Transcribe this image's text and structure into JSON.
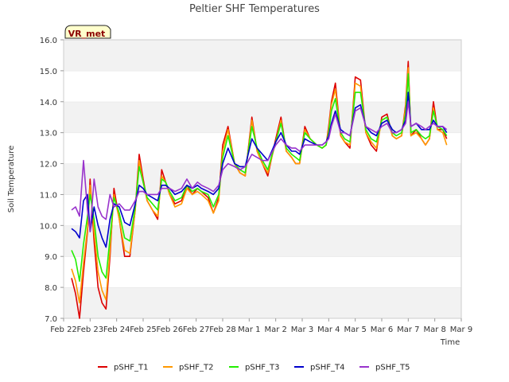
{
  "chart_data": {
    "type": "line",
    "title": "Peltier SHF Temperatures",
    "xlabel": "Time",
    "ylabel": "Soil Temperature",
    "badge": "VR_met",
    "x_ticks": [
      "Feb 22",
      "Feb 23",
      "Feb 24",
      "Feb 25",
      "Feb 26",
      "Feb 27",
      "Feb 28",
      "Mar 1",
      "Mar 2",
      "Mar 3",
      "Mar 4",
      "Mar 5",
      "Mar 6",
      "Mar 7",
      "Mar 8",
      "Mar 9"
    ],
    "xlim": [
      0,
      15
    ],
    "ylim": [
      7.0,
      16.0
    ],
    "y_ticks": [
      "7.0",
      "8.0",
      "9.0",
      "10.0",
      "11.0",
      "12.0",
      "13.0",
      "14.0",
      "15.0",
      "16.0"
    ],
    "grid": "horizontal bands",
    "legend_position": "bottom",
    "series": [
      {
        "name": "pSHF_T1",
        "color": "#dd0000",
        "x": [
          0.3,
          0.45,
          0.6,
          0.75,
          0.9,
          1.0,
          1.15,
          1.3,
          1.45,
          1.6,
          1.75,
          1.9,
          2.1,
          2.3,
          2.5,
          2.7,
          2.85,
          3.0,
          3.15,
          3.35,
          3.55,
          3.7,
          3.85,
          4.0,
          4.2,
          4.45,
          4.65,
          4.85,
          5.05,
          5.2,
          5.45,
          5.65,
          5.85,
          6.0,
          6.2,
          6.45,
          6.65,
          6.85,
          7.1,
          7.3,
          7.5,
          7.7,
          8.0,
          8.2,
          8.4,
          8.6,
          8.75,
          8.9,
          9.1,
          9.3,
          9.55,
          9.75,
          9.9,
          10.0,
          10.1,
          10.25,
          10.45,
          10.6,
          10.8,
          11.0,
          11.2,
          11.4,
          11.6,
          11.8,
          12.0,
          12.2,
          12.4,
          12.55,
          12.75,
          12.9,
          13.0,
          13.1,
          13.3,
          13.5,
          13.65,
          13.8,
          13.95,
          14.1,
          14.3,
          14.45
        ],
        "values": [
          8.3,
          7.8,
          7.0,
          8.5,
          9.8,
          11.5,
          9.5,
          8.0,
          7.5,
          7.3,
          9.0,
          11.2,
          10.2,
          9.0,
          9.0,
          10.5,
          12.3,
          11.5,
          10.8,
          10.5,
          10.2,
          11.8,
          11.4,
          11.0,
          10.7,
          10.8,
          11.3,
          11.0,
          11.2,
          11.1,
          10.9,
          10.4,
          10.9,
          12.6,
          13.2,
          12.0,
          11.7,
          11.6,
          13.5,
          12.4,
          12.0,
          11.6,
          12.8,
          13.5,
          12.4,
          12.2,
          12.0,
          12.0,
          13.2,
          12.8,
          12.6,
          12.5,
          12.6,
          13.2,
          14.0,
          14.6,
          12.9,
          12.7,
          12.5,
          14.8,
          14.7,
          13.0,
          12.6,
          12.4,
          13.5,
          13.6,
          12.9,
          12.8,
          12.9,
          13.9,
          15.3,
          12.9,
          13.1,
          12.8,
          12.6,
          12.8,
          14.0,
          13.1,
          13.1,
          12.8
        ]
      },
      {
        "name": "pSHF_T2",
        "color": "#ff9900",
        "x": [
          0.3,
          0.45,
          0.6,
          0.75,
          0.9,
          1.0,
          1.15,
          1.3,
          1.45,
          1.6,
          1.75,
          1.9,
          2.1,
          2.3,
          2.5,
          2.7,
          2.85,
          3.0,
          3.15,
          3.35,
          3.55,
          3.7,
          3.85,
          4.0,
          4.2,
          4.45,
          4.65,
          4.85,
          5.05,
          5.2,
          5.45,
          5.65,
          5.85,
          6.0,
          6.2,
          6.45,
          6.65,
          6.85,
          7.1,
          7.3,
          7.5,
          7.7,
          8.0,
          8.2,
          8.4,
          8.6,
          8.75,
          8.9,
          9.1,
          9.3,
          9.55,
          9.75,
          9.9,
          10.0,
          10.1,
          10.25,
          10.45,
          10.6,
          10.8,
          11.0,
          11.2,
          11.4,
          11.6,
          11.8,
          12.0,
          12.2,
          12.4,
          12.55,
          12.75,
          12.9,
          13.0,
          13.1,
          13.3,
          13.5,
          13.65,
          13.8,
          13.95,
          14.1,
          14.3,
          14.45
        ],
        "values": [
          8.6,
          8.2,
          7.5,
          8.8,
          9.9,
          11.3,
          9.8,
          8.5,
          7.9,
          7.6,
          9.2,
          11.0,
          10.2,
          9.2,
          9.1,
          10.5,
          12.1,
          11.4,
          10.8,
          10.5,
          10.3,
          11.6,
          11.4,
          11.0,
          10.6,
          10.7,
          11.2,
          11.0,
          11.1,
          11.0,
          10.8,
          10.4,
          10.8,
          12.4,
          13.1,
          12.0,
          11.7,
          11.6,
          13.4,
          12.4,
          12.0,
          11.7,
          12.7,
          13.4,
          12.4,
          12.2,
          12.0,
          12.0,
          13.1,
          12.8,
          12.6,
          12.5,
          12.6,
          13.1,
          13.9,
          14.4,
          12.9,
          12.7,
          12.6,
          14.6,
          14.5,
          13.0,
          12.7,
          12.5,
          13.4,
          13.5,
          12.9,
          12.8,
          12.9,
          13.8,
          15.1,
          12.9,
          13.0,
          12.8,
          12.6,
          12.8,
          13.8,
          13.1,
          13.0,
          12.6
        ]
      },
      {
        "name": "pSHF_T3",
        "color": "#22ee00",
        "x": [
          0.3,
          0.45,
          0.6,
          0.75,
          0.9,
          1.0,
          1.15,
          1.3,
          1.45,
          1.6,
          1.75,
          1.9,
          2.1,
          2.3,
          2.5,
          2.7,
          2.85,
          3.0,
          3.15,
          3.35,
          3.55,
          3.7,
          3.85,
          4.0,
          4.2,
          4.45,
          4.65,
          4.85,
          5.05,
          5.2,
          5.45,
          5.65,
          5.85,
          6.0,
          6.2,
          6.45,
          6.65,
          6.85,
          7.1,
          7.3,
          7.5,
          7.7,
          8.0,
          8.2,
          8.4,
          8.6,
          8.75,
          8.9,
          9.1,
          9.3,
          9.55,
          9.75,
          9.9,
          10.0,
          10.1,
          10.25,
          10.45,
          10.6,
          10.8,
          11.0,
          11.2,
          11.4,
          11.6,
          11.8,
          12.0,
          12.2,
          12.4,
          12.55,
          12.75,
          12.9,
          13.0,
          13.1,
          13.3,
          13.5,
          13.65,
          13.8,
          13.95,
          14.1,
          14.3,
          14.45
        ],
        "values": [
          9.2,
          8.9,
          8.2,
          9.4,
          10.3,
          11.0,
          10.2,
          9.0,
          8.5,
          8.3,
          9.6,
          10.9,
          10.4,
          9.6,
          9.5,
          10.6,
          11.9,
          11.4,
          10.9,
          10.7,
          10.5,
          11.5,
          11.4,
          11.1,
          10.8,
          10.9,
          11.3,
          11.1,
          11.2,
          11.1,
          11.0,
          10.6,
          11.0,
          12.2,
          12.9,
          12.0,
          11.8,
          11.7,
          13.2,
          12.5,
          12.1,
          11.8,
          12.7,
          13.3,
          12.5,
          12.3,
          12.2,
          12.1,
          13.0,
          12.8,
          12.6,
          12.5,
          12.6,
          13.0,
          13.7,
          14.1,
          13.0,
          12.8,
          12.7,
          14.3,
          14.3,
          13.1,
          12.8,
          12.7,
          13.4,
          13.5,
          13.0,
          12.9,
          13.0,
          13.6,
          14.9,
          13.0,
          13.1,
          12.9,
          12.8,
          12.9,
          13.7,
          13.2,
          13.1,
          12.9
        ]
      },
      {
        "name": "pSHF_T4",
        "color": "#0000cc",
        "x": [
          0.3,
          0.45,
          0.6,
          0.75,
          0.9,
          1.0,
          1.15,
          1.3,
          1.45,
          1.6,
          1.75,
          1.9,
          2.1,
          2.3,
          2.5,
          2.7,
          2.85,
          3.0,
          3.15,
          3.35,
          3.55,
          3.7,
          3.85,
          4.0,
          4.2,
          4.45,
          4.65,
          4.85,
          5.05,
          5.2,
          5.45,
          5.65,
          5.85,
          6.0,
          6.2,
          6.45,
          6.65,
          6.85,
          7.1,
          7.3,
          7.5,
          7.7,
          8.0,
          8.2,
          8.4,
          8.6,
          8.75,
          8.9,
          9.1,
          9.3,
          9.55,
          9.75,
          9.9,
          10.0,
          10.1,
          10.25,
          10.45,
          10.6,
          10.8,
          11.0,
          11.2,
          11.4,
          11.6,
          11.8,
          12.0,
          12.2,
          12.4,
          12.55,
          12.75,
          12.9,
          13.0,
          13.1,
          13.3,
          13.5,
          13.65,
          13.8,
          13.95,
          14.1,
          14.3,
          14.45
        ],
        "values": [
          9.9,
          9.8,
          9.6,
          10.8,
          11.0,
          9.8,
          10.6,
          10.0,
          9.6,
          9.3,
          10.2,
          10.7,
          10.6,
          10.1,
          10.0,
          10.7,
          11.3,
          11.2,
          11.0,
          10.9,
          10.8,
          11.3,
          11.3,
          11.2,
          11.0,
          11.1,
          11.3,
          11.2,
          11.3,
          11.2,
          11.1,
          11.0,
          11.2,
          12.0,
          12.5,
          12.0,
          11.9,
          11.9,
          12.8,
          12.5,
          12.3,
          12.1,
          12.7,
          13.0,
          12.6,
          12.4,
          12.4,
          12.3,
          12.8,
          12.7,
          12.6,
          12.6,
          12.7,
          12.9,
          13.3,
          13.7,
          13.1,
          13.0,
          12.9,
          13.8,
          13.9,
          13.2,
          13.0,
          12.9,
          13.3,
          13.4,
          13.1,
          13.0,
          13.1,
          13.4,
          14.3,
          13.2,
          13.3,
          13.1,
          13.1,
          13.1,
          13.4,
          13.2,
          13.2,
          13.0
        ]
      },
      {
        "name": "pSHF_T5",
        "color": "#9933cc",
        "x": [
          0.3,
          0.45,
          0.6,
          0.75,
          0.9,
          1.0,
          1.15,
          1.3,
          1.45,
          1.6,
          1.75,
          1.9,
          2.1,
          2.3,
          2.5,
          2.7,
          2.85,
          3.0,
          3.15,
          3.35,
          3.55,
          3.7,
          3.85,
          4.0,
          4.2,
          4.45,
          4.65,
          4.85,
          5.05,
          5.2,
          5.45,
          5.65,
          5.85,
          6.0,
          6.2,
          6.45,
          6.65,
          6.85,
          7.1,
          7.3,
          7.5,
          7.7,
          8.0,
          8.2,
          8.4,
          8.6,
          8.75,
          8.9,
          9.1,
          9.3,
          9.55,
          9.75,
          9.9,
          10.0,
          10.1,
          10.25,
          10.45,
          10.6,
          10.8,
          11.0,
          11.2,
          11.4,
          11.6,
          11.8,
          12.0,
          12.2,
          12.4,
          12.55,
          12.75,
          12.9,
          13.0,
          13.1,
          13.3,
          13.5,
          13.65,
          13.8,
          13.95,
          14.1,
          14.3,
          14.45
        ],
        "values": [
          10.5,
          10.6,
          10.3,
          12.1,
          10.5,
          9.8,
          11.5,
          10.6,
          10.3,
          10.2,
          11.0,
          10.6,
          10.7,
          10.5,
          10.5,
          10.8,
          11.1,
          11.1,
          11.0,
          11.0,
          11.0,
          11.2,
          11.2,
          11.2,
          11.1,
          11.2,
          11.5,
          11.2,
          11.4,
          11.3,
          11.2,
          11.1,
          11.3,
          11.8,
          12.0,
          11.9,
          11.8,
          11.9,
          12.3,
          12.2,
          12.1,
          12.1,
          12.6,
          12.8,
          12.6,
          12.5,
          12.5,
          12.4,
          12.6,
          12.6,
          12.6,
          12.6,
          12.7,
          12.8,
          13.2,
          13.6,
          13.0,
          13.0,
          12.9,
          13.7,
          13.8,
          13.2,
          13.1,
          13.0,
          13.2,
          13.3,
          13.0,
          13.0,
          13.1,
          13.3,
          14.0,
          13.2,
          13.3,
          13.2,
          13.1,
          13.2,
          13.3,
          13.2,
          13.2,
          13.1
        ]
      }
    ]
  }
}
